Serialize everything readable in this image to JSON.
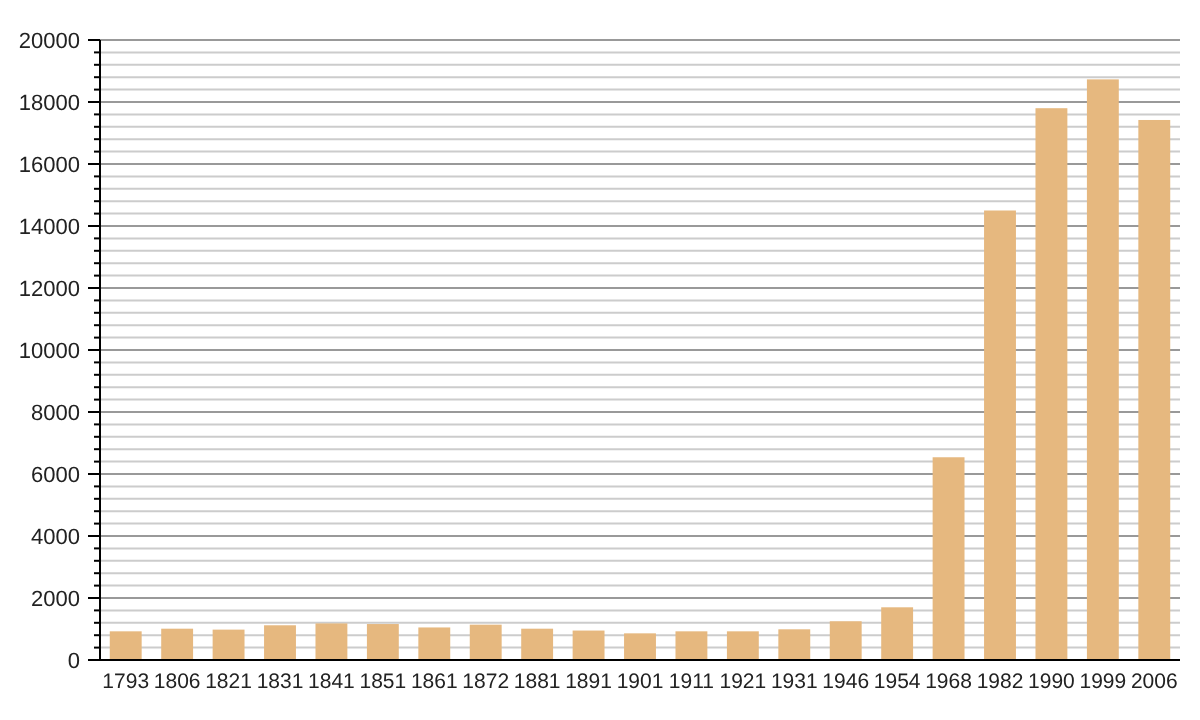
{
  "chart_data": {
    "type": "bar",
    "categories": [
      "1793",
      "1806",
      "1821",
      "1831",
      "1841",
      "1851",
      "1861",
      "1872",
      "1881",
      "1891",
      "1901",
      "1911",
      "1921",
      "1931",
      "1946",
      "1954",
      "1968",
      "1982",
      "1990",
      "1999",
      "2006"
    ],
    "values": [
      925,
      1010,
      980,
      1120,
      1180,
      1160,
      1050,
      1140,
      1010,
      950,
      860,
      925,
      925,
      990,
      1250,
      1700,
      6540,
      14500,
      17800,
      18730,
      17420
    ],
    "color": "#e6b87f",
    "ylim": [
      0,
      20000
    ],
    "yticks": [
      0,
      2000,
      4000,
      6000,
      8000,
      10000,
      12000,
      14000,
      16000,
      18000,
      20000
    ],
    "grid": true
  }
}
